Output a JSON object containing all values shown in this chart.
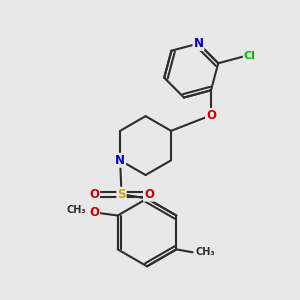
{
  "bg_color": "#e8e8e8",
  "bond_color": "#2d2d2d",
  "bond_width": 1.5,
  "atom_colors": {
    "N": "#0000cc",
    "O": "#cc0000",
    "S": "#ccaa00",
    "Cl": "#00bb00",
    "C": "#2d2d2d"
  },
  "font_size": 8.5
}
